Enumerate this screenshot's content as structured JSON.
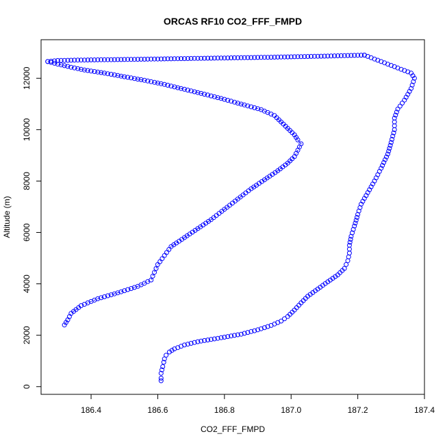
{
  "chart_data": {
    "type": "scatter",
    "title": "ORCAS RF10 CO2_FFF_FMPD",
    "xlabel": "CO2_FFF_FMPD",
    "ylabel": "Altitude (m)",
    "xlim": [
      186.25,
      187.4
    ],
    "ylim": [
      -300,
      13500
    ],
    "x_ticks": [
      186.4,
      186.6,
      186.8,
      187.0,
      187.2,
      187.4
    ],
    "x_tick_labels": [
      "186.4",
      "186.6",
      "186.8",
      "187.0",
      "187.2",
      "187.4"
    ],
    "y_ticks": [
      0,
      2000,
      4000,
      6000,
      8000,
      10000,
      12000
    ],
    "y_tick_labels": [
      "0",
      "2000",
      "4000",
      "6000",
      "8000",
      "10000",
      "12000"
    ],
    "marker": "open-circle",
    "color": "#0000ff",
    "series": [
      {
        "points": [
          [
            186.61,
            230
          ],
          [
            186.61,
            330
          ],
          [
            186.61,
            520
          ],
          [
            186.615,
            780
          ],
          [
            186.618,
            950
          ],
          [
            186.62,
            1080
          ],
          [
            186.625,
            1220
          ],
          [
            186.635,
            1350
          ],
          [
            186.65,
            1470
          ],
          [
            186.68,
            1620
          ],
          [
            186.72,
            1750
          ],
          [
            186.78,
            1880
          ],
          [
            186.85,
            2040
          ],
          [
            186.9,
            2210
          ],
          [
            186.94,
            2380
          ],
          [
            186.97,
            2550
          ],
          [
            186.99,
            2730
          ],
          [
            187.01,
            2980
          ],
          [
            187.03,
            3260
          ],
          [
            187.05,
            3520
          ],
          [
            187.08,
            3800
          ],
          [
            187.11,
            4080
          ],
          [
            187.14,
            4350
          ],
          [
            187.16,
            4600
          ],
          [
            187.17,
            4900
          ],
          [
            187.175,
            5200
          ],
          [
            187.175,
            5500
          ],
          [
            187.18,
            5850
          ],
          [
            187.19,
            6250
          ],
          [
            187.2,
            6700
          ],
          [
            187.21,
            7100
          ],
          [
            187.23,
            7550
          ],
          [
            187.25,
            8000
          ],
          [
            187.27,
            8500
          ],
          [
            187.29,
            9050
          ],
          [
            187.3,
            9500
          ],
          [
            187.31,
            10000
          ],
          [
            187.31,
            10450
          ],
          [
            187.32,
            10800
          ],
          [
            187.34,
            11150
          ],
          [
            187.36,
            11600
          ],
          [
            187.37,
            12000
          ],
          [
            187.36,
            12200
          ],
          [
            187.33,
            12350
          ],
          [
            187.3,
            12500
          ],
          [
            187.27,
            12650
          ],
          [
            187.24,
            12800
          ],
          [
            187.22,
            12900
          ]
        ]
      },
      {
        "points": [
          [
            187.22,
            12900
          ],
          [
            187.1,
            12860
          ],
          [
            186.95,
            12820
          ],
          [
            186.8,
            12790
          ],
          [
            186.65,
            12760
          ],
          [
            186.5,
            12730
          ],
          [
            186.38,
            12710
          ],
          [
            186.3,
            12690
          ],
          [
            186.27,
            12650
          ]
        ]
      },
      {
        "points": [
          [
            186.27,
            12650
          ],
          [
            186.3,
            12550
          ],
          [
            186.34,
            12430
          ],
          [
            186.38,
            12320
          ],
          [
            186.44,
            12200
          ],
          [
            186.5,
            12060
          ],
          [
            186.56,
            11920
          ],
          [
            186.62,
            11760
          ],
          [
            186.68,
            11570
          ],
          [
            186.74,
            11380
          ],
          [
            186.8,
            11180
          ],
          [
            186.86,
            10960
          ],
          [
            186.91,
            10780
          ],
          [
            186.95,
            10550
          ],
          [
            186.97,
            10300
          ],
          [
            186.99,
            10050
          ],
          [
            187.01,
            9800
          ],
          [
            187.02,
            9600
          ],
          [
            187.03,
            9450
          ],
          [
            187.02,
            9200
          ],
          [
            187.01,
            8950
          ],
          [
            186.99,
            8700
          ],
          [
            186.96,
            8400
          ],
          [
            186.92,
            8050
          ],
          [
            186.88,
            7700
          ],
          [
            186.84,
            7300
          ],
          [
            186.8,
            6900
          ],
          [
            186.76,
            6500
          ],
          [
            186.72,
            6150
          ],
          [
            186.68,
            5800
          ],
          [
            186.64,
            5450
          ],
          [
            186.62,
            5100
          ],
          [
            186.6,
            4750
          ],
          [
            186.59,
            4450
          ],
          [
            186.58,
            4150
          ],
          [
            186.54,
            3900
          ],
          [
            186.48,
            3650
          ],
          [
            186.42,
            3420
          ],
          [
            186.37,
            3150
          ],
          [
            186.34,
            2850
          ],
          [
            186.33,
            2600
          ],
          [
            186.32,
            2400
          ]
        ]
      }
    ]
  }
}
